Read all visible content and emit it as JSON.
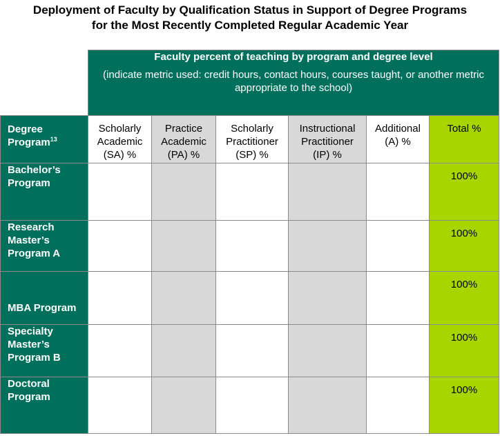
{
  "title": {
    "line1": "Deployment of Faculty by Qualification Status in Support of Degree Programs",
    "line2": "for the Most Recently Completed Regular Academic Year"
  },
  "banner": {
    "main": "Faculty percent of teaching by program and degree level",
    "sub": "(indicate metric used: credit hours, contact hours, courses taught, or another metric appropriate to the school)"
  },
  "table": {
    "row_header_label": "Degree Program",
    "row_header_footnote": "13",
    "columns": [
      {
        "line1": "Scholarly",
        "line2": "Academic",
        "line3": "(SA) %",
        "shade": "white"
      },
      {
        "line1": "Practice",
        "line2": "Academic",
        "line3": "(PA) %",
        "shade": "gray"
      },
      {
        "line1": "Scholarly",
        "line2": "Practitioner",
        "line3": "(SP) %",
        "shade": "white"
      },
      {
        "line1": "Instructional",
        "line2": "Practitioner",
        "line3": "(IP) %",
        "shade": "gray"
      },
      {
        "line1": "Additional",
        "line2": "(A) %",
        "line3": "",
        "shade": "white"
      }
    ],
    "total_label": "Total %",
    "rows": [
      {
        "program": "Bachelor’s Program",
        "total": "100%"
      },
      {
        "program": "Research Master’s Program A",
        "total": "100%"
      },
      {
        "program": "MBA Program",
        "total": "100%"
      },
      {
        "program": "Specialty Master’s Program B",
        "total": "100%"
      },
      {
        "program": "Doctoral Program",
        "total": "100%"
      }
    ]
  },
  "colors": {
    "dark_green": "#006f5c",
    "lime_green": "#a8d400",
    "gray_fill": "#d8d8d8"
  }
}
